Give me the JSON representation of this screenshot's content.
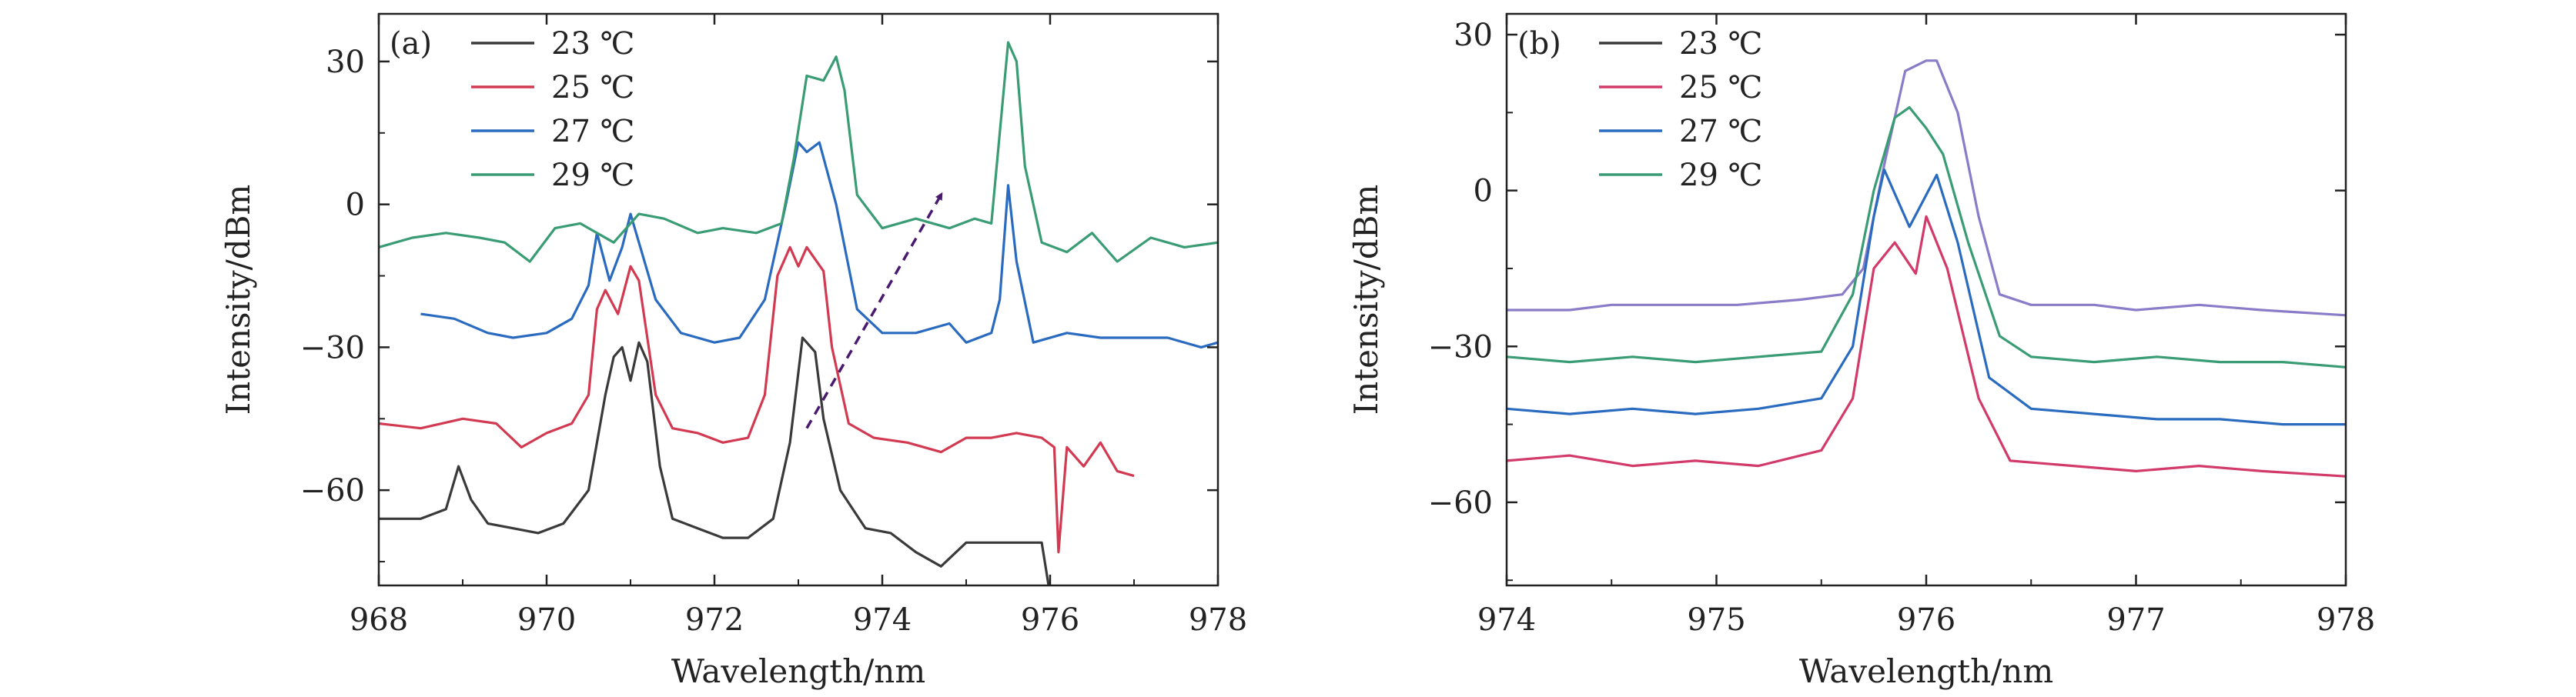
{
  "chart_data": [
    {
      "type": "line",
      "panel_label": "(a)",
      "xlabel": "Wavelength/nm",
      "ylabel": "Intensity/dBm",
      "xlim": [
        968,
        978
      ],
      "ylim": [
        -80,
        40
      ],
      "xticks": [
        968,
        970,
        972,
        974,
        976,
        978
      ],
      "xtick_labels": [
        "968",
        "970",
        "972",
        "974",
        "976",
        "978"
      ],
      "yticks": [
        30,
        0,
        -30,
        -60
      ],
      "ytick_labels": [
        "30",
        "0",
        "−30",
        "−60"
      ],
      "legend_position": "top-left",
      "annotation": "dashed arrow indicating wavelength shift with increasing temperature",
      "series": [
        {
          "name": "23 ℃",
          "color": "#3a3a3a",
          "points": [
            [
              968.0,
              -66
            ],
            [
              968.5,
              -66
            ],
            [
              968.8,
              -64
            ],
            [
              968.95,
              -55
            ],
            [
              969.1,
              -62
            ],
            [
              969.3,
              -67
            ],
            [
              969.6,
              -68
            ],
            [
              969.9,
              -69
            ],
            [
              970.2,
              -67
            ],
            [
              970.5,
              -60
            ],
            [
              970.7,
              -40
            ],
            [
              970.8,
              -32
            ],
            [
              970.9,
              -30
            ],
            [
              971.0,
              -37
            ],
            [
              971.1,
              -29
            ],
            [
              971.2,
              -33
            ],
            [
              971.35,
              -55
            ],
            [
              971.5,
              -66
            ],
            [
              971.8,
              -68
            ],
            [
              972.1,
              -70
            ],
            [
              972.4,
              -70
            ],
            [
              972.7,
              -66
            ],
            [
              972.9,
              -50
            ],
            [
              973.05,
              -28
            ],
            [
              973.2,
              -31
            ],
            [
              973.3,
              -45
            ],
            [
              973.5,
              -60
            ],
            [
              973.8,
              -68
            ],
            [
              974.1,
              -69
            ],
            [
              974.4,
              -73
            ],
            [
              974.7,
              -76
            ],
            [
              975.0,
              -71
            ],
            [
              975.3,
              -71
            ],
            [
              975.6,
              -71
            ],
            [
              975.9,
              -71
            ],
            [
              976.0,
              -82
            ]
          ]
        },
        {
          "name": "25 ℃",
          "color": "#d23a52",
          "points": [
            [
              968.0,
              -46
            ],
            [
              968.5,
              -47
            ],
            [
              969.0,
              -45
            ],
            [
              969.4,
              -46
            ],
            [
              969.7,
              -51
            ],
            [
              970.0,
              -48
            ],
            [
              970.3,
              -46
            ],
            [
              970.5,
              -40
            ],
            [
              970.6,
              -22
            ],
            [
              970.7,
              -18
            ],
            [
              970.85,
              -23
            ],
            [
              971.0,
              -13
            ],
            [
              971.1,
              -16
            ],
            [
              971.3,
              -40
            ],
            [
              971.5,
              -47
            ],
            [
              971.8,
              -48
            ],
            [
              972.1,
              -50
            ],
            [
              972.4,
              -49
            ],
            [
              972.6,
              -40
            ],
            [
              972.75,
              -15
            ],
            [
              972.9,
              -9
            ],
            [
              973.0,
              -13
            ],
            [
              973.1,
              -9
            ],
            [
              973.3,
              -14
            ],
            [
              973.4,
              -30
            ],
            [
              973.6,
              -46
            ],
            [
              973.9,
              -49
            ],
            [
              974.3,
              -50
            ],
            [
              974.7,
              -52
            ],
            [
              975.0,
              -49
            ],
            [
              975.3,
              -49
            ],
            [
              975.6,
              -48
            ],
            [
              975.9,
              -49
            ],
            [
              976.05,
              -51
            ],
            [
              976.1,
              -73
            ],
            [
              976.2,
              -51
            ],
            [
              976.4,
              -55
            ],
            [
              976.6,
              -50
            ],
            [
              976.8,
              -56
            ],
            [
              977.0,
              -57
            ]
          ]
        },
        {
          "name": "27 ℃",
          "color": "#2a6bbf",
          "points": [
            [
              968.5,
              -23
            ],
            [
              968.9,
              -24
            ],
            [
              969.3,
              -27
            ],
            [
              969.6,
              -28
            ],
            [
              970.0,
              -27
            ],
            [
              970.3,
              -24
            ],
            [
              970.5,
              -17
            ],
            [
              970.6,
              -6
            ],
            [
              970.75,
              -16
            ],
            [
              970.9,
              -9
            ],
            [
              971.0,
              -2
            ],
            [
              971.1,
              -8
            ],
            [
              971.3,
              -20
            ],
            [
              971.6,
              -27
            ],
            [
              972.0,
              -29
            ],
            [
              972.3,
              -28
            ],
            [
              972.6,
              -20
            ],
            [
              972.85,
              0
            ],
            [
              973.0,
              13
            ],
            [
              973.1,
              11
            ],
            [
              973.25,
              13
            ],
            [
              973.45,
              0
            ],
            [
              973.7,
              -22
            ],
            [
              974.0,
              -27
            ],
            [
              974.4,
              -27
            ],
            [
              974.8,
              -25
            ],
            [
              975.0,
              -29
            ],
            [
              975.3,
              -27
            ],
            [
              975.4,
              -20
            ],
            [
              975.5,
              4
            ],
            [
              975.6,
              -12
            ],
            [
              975.8,
              -29
            ],
            [
              976.2,
              -27
            ],
            [
              976.6,
              -28
            ],
            [
              977.0,
              -28
            ],
            [
              977.4,
              -28
            ],
            [
              977.8,
              -30
            ],
            [
              978.0,
              -29
            ]
          ]
        },
        {
          "name": "29 ℃",
          "color": "#3a9c74",
          "points": [
            [
              968.0,
              -9
            ],
            [
              968.4,
              -7
            ],
            [
              968.8,
              -6
            ],
            [
              969.2,
              -7
            ],
            [
              969.5,
              -8
            ],
            [
              969.8,
              -12
            ],
            [
              970.1,
              -5
            ],
            [
              970.4,
              -4
            ],
            [
              970.8,
              -8
            ],
            [
              971.1,
              -2
            ],
            [
              971.4,
              -3
            ],
            [
              971.8,
              -6
            ],
            [
              972.1,
              -5
            ],
            [
              972.5,
              -6
            ],
            [
              972.8,
              -4
            ],
            [
              972.95,
              10
            ],
            [
              973.1,
              27
            ],
            [
              973.3,
              26
            ],
            [
              973.45,
              31
            ],
            [
              973.55,
              24
            ],
            [
              973.7,
              2
            ],
            [
              974.0,
              -5
            ],
            [
              974.4,
              -3
            ],
            [
              974.8,
              -5
            ],
            [
              975.1,
              -3
            ],
            [
              975.3,
              -4
            ],
            [
              975.4,
              15
            ],
            [
              975.5,
              34
            ],
            [
              975.6,
              30
            ],
            [
              975.7,
              8
            ],
            [
              975.9,
              -8
            ],
            [
              976.2,
              -10
            ],
            [
              976.5,
              -6
            ],
            [
              976.8,
              -12
            ],
            [
              977.2,
              -7
            ],
            [
              977.6,
              -9
            ],
            [
              978.0,
              -8
            ]
          ]
        }
      ]
    },
    {
      "type": "line",
      "panel_label": "(b)",
      "xlabel": "Wavelength/nm",
      "ylabel": "Intensity/dBm",
      "xlim": [
        974,
        978
      ],
      "ylim": [
        -76,
        34
      ],
      "xticks": [
        974,
        975,
        976,
        977,
        978
      ],
      "xtick_labels": [
        "974",
        "975",
        "976",
        "977",
        "978"
      ],
      "yticks": [
        30,
        0,
        -30,
        -60
      ],
      "ytick_labels": [
        "30",
        "0",
        "−30",
        "−60"
      ],
      "legend_position": "top-left",
      "series": [
        {
          "name": "23 ℃",
          "color": "#8a7cc8",
          "points": [
            [
              974.0,
              -23
            ],
            [
              974.3,
              -23
            ],
            [
              974.5,
              -22
            ],
            [
              974.8,
              -22
            ],
            [
              975.1,
              -22
            ],
            [
              975.4,
              -21
            ],
            [
              975.6,
              -20
            ],
            [
              975.7,
              -15
            ],
            [
              975.8,
              5
            ],
            [
              975.9,
              23
            ],
            [
              976.0,
              25
            ],
            [
              976.05,
              25
            ],
            [
              976.15,
              15
            ],
            [
              976.25,
              -5
            ],
            [
              976.35,
              -20
            ],
            [
              976.5,
              -22
            ],
            [
              976.8,
              -22
            ],
            [
              977.0,
              -23
            ],
            [
              977.3,
              -22
            ],
            [
              977.6,
              -23
            ],
            [
              978.0,
              -24
            ]
          ]
        },
        {
          "name": "25 ℃",
          "color": "#d23a6a",
          "points": [
            [
              974.0,
              -52
            ],
            [
              974.3,
              -51
            ],
            [
              974.6,
              -53
            ],
            [
              974.9,
              -52
            ],
            [
              975.2,
              -53
            ],
            [
              975.5,
              -50
            ],
            [
              975.65,
              -40
            ],
            [
              975.75,
              -15
            ],
            [
              975.85,
              -10
            ],
            [
              975.95,
              -16
            ],
            [
              976.0,
              -5
            ],
            [
              976.1,
              -15
            ],
            [
              976.25,
              -40
            ],
            [
              976.4,
              -52
            ],
            [
              976.7,
              -53
            ],
            [
              977.0,
              -54
            ],
            [
              977.3,
              -53
            ],
            [
              977.6,
              -54
            ],
            [
              978.0,
              -55
            ]
          ]
        },
        {
          "name": "27 ℃",
          "color": "#2a6bbf",
          "points": [
            [
              974.0,
              -42
            ],
            [
              974.3,
              -43
            ],
            [
              974.6,
              -42
            ],
            [
              974.9,
              -43
            ],
            [
              975.2,
              -42
            ],
            [
              975.5,
              -40
            ],
            [
              975.65,
              -30
            ],
            [
              975.75,
              -5
            ],
            [
              975.8,
              4
            ],
            [
              975.92,
              -7
            ],
            [
              976.05,
              3
            ],
            [
              976.15,
              -10
            ],
            [
              976.3,
              -36
            ],
            [
              976.5,
              -42
            ],
            [
              976.8,
              -43
            ],
            [
              977.1,
              -44
            ],
            [
              977.4,
              -44
            ],
            [
              977.7,
              -45
            ],
            [
              978.0,
              -45
            ]
          ]
        },
        {
          "name": "29 ℃",
          "color": "#3a9c74",
          "points": [
            [
              974.0,
              -32
            ],
            [
              974.3,
              -33
            ],
            [
              974.6,
              -32
            ],
            [
              974.9,
              -33
            ],
            [
              975.2,
              -32
            ],
            [
              975.5,
              -31
            ],
            [
              975.65,
              -20
            ],
            [
              975.75,
              0
            ],
            [
              975.85,
              14
            ],
            [
              975.92,
              16
            ],
            [
              976.0,
              12
            ],
            [
              976.08,
              7
            ],
            [
              976.2,
              -10
            ],
            [
              976.35,
              -28
            ],
            [
              976.5,
              -32
            ],
            [
              976.8,
              -33
            ],
            [
              977.1,
              -32
            ],
            [
              977.4,
              -33
            ],
            [
              977.7,
              -33
            ],
            [
              978.0,
              -34
            ]
          ]
        }
      ]
    }
  ]
}
